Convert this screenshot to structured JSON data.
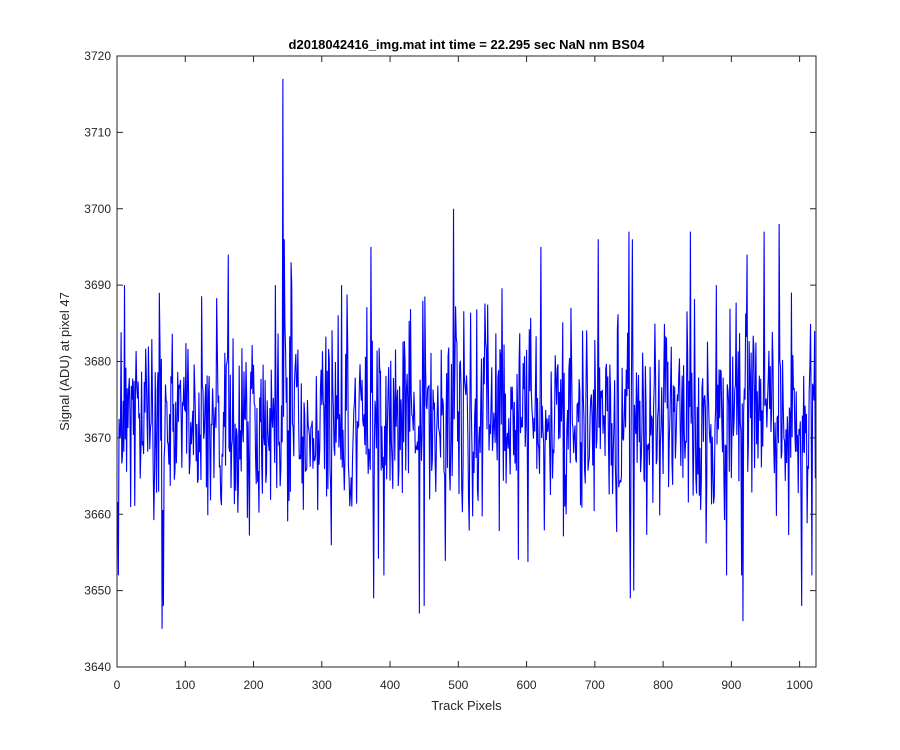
{
  "chart_data": {
    "type": "line",
    "title": "d2018042416_img.mat int time = 22.295 sec  NaN nm BS04",
    "xlabel": "Track Pixels",
    "ylabel": "Signal (ADU) at pixel 47",
    "xlim": [
      0,
      1024
    ],
    "ylim": [
      3640,
      3720
    ],
    "xticks": [
      0,
      100,
      200,
      300,
      400,
      500,
      600,
      700,
      800,
      900,
      1000
    ],
    "yticks": [
      3640,
      3650,
      3660,
      3670,
      3680,
      3690,
      3700,
      3710,
      3720
    ],
    "grid": false,
    "legend": "none",
    "series": [
      {
        "color": "#0000ff",
        "x_start": 1,
        "x_step": 1,
        "points": 1024,
        "baseline": 3672,
        "spread": 6.5,
        "seed": 47,
        "spikes": [
          {
            "x": 62,
            "y": 3689
          },
          {
            "x": 66,
            "y": 3645
          },
          {
            "x": 68,
            "y": 3648
          },
          {
            "x": 163,
            "y": 3694
          },
          {
            "x": 243,
            "y": 3717
          },
          {
            "x": 245,
            "y": 3696
          },
          {
            "x": 255,
            "y": 3693
          },
          {
            "x": 372,
            "y": 3695
          },
          {
            "x": 376,
            "y": 3649
          },
          {
            "x": 443,
            "y": 3647
          },
          {
            "x": 450,
            "y": 3648
          },
          {
            "x": 493,
            "y": 3700
          },
          {
            "x": 621,
            "y": 3695
          },
          {
            "x": 705,
            "y": 3696
          },
          {
            "x": 752,
            "y": 3649
          },
          {
            "x": 755,
            "y": 3696
          },
          {
            "x": 757,
            "y": 3650
          },
          {
            "x": 750,
            "y": 3697
          },
          {
            "x": 840,
            "y": 3697
          },
          {
            "x": 893,
            "y": 3652
          },
          {
            "x": 917,
            "y": 3646
          },
          {
            "x": 923,
            "y": 3694
          },
          {
            "x": 948,
            "y": 3697
          },
          {
            "x": 970,
            "y": 3698
          },
          {
            "x": 1003,
            "y": 3648
          },
          {
            "x": 1018,
            "y": 3652
          },
          {
            "x": 1022,
            "y": 3684
          }
        ]
      }
    ]
  }
}
